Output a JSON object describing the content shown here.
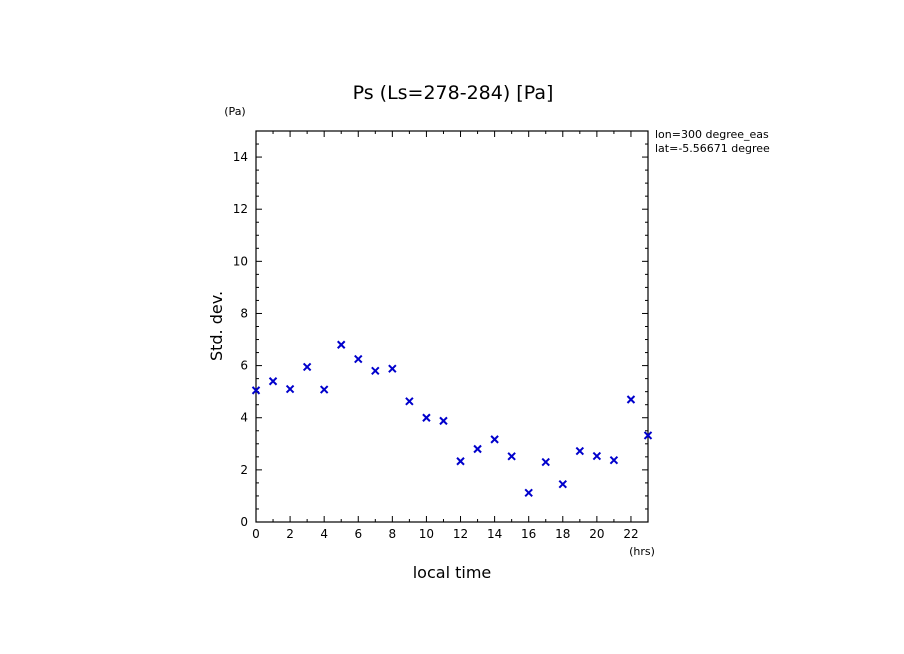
{
  "chart_data": {
    "type": "scatter",
    "title": "Ps (Ls=278-284) [Pa]",
    "xlabel": "local time",
    "ylabel": "Std. dev.",
    "x_unit": "(hrs)",
    "y_unit": "(Pa)",
    "xlim": [
      0,
      23
    ],
    "ylim": [
      0,
      15
    ],
    "xticks": [
      0,
      2,
      4,
      6,
      8,
      10,
      12,
      14,
      16,
      18,
      20,
      22
    ],
    "yticks": [
      0,
      2,
      4,
      6,
      8,
      10,
      12,
      14
    ],
    "grid": false,
    "annotations": [
      "lon=300 degree_eas",
      "lat=-5.56671 degree"
    ],
    "marker": "x",
    "marker_color": "#0000cc",
    "series": [
      {
        "name": "Std. dev.",
        "x": [
          0,
          1,
          2,
          3,
          4,
          5,
          6,
          7,
          8,
          9,
          10,
          11,
          12,
          13,
          14,
          15,
          16,
          17,
          18,
          19,
          20,
          21,
          22,
          23
        ],
        "y": [
          5.05,
          5.4,
          5.1,
          5.95,
          5.08,
          6.8,
          6.25,
          5.8,
          5.88,
          4.63,
          4.0,
          3.88,
          2.33,
          2.8,
          3.17,
          2.52,
          1.12,
          2.3,
          1.45,
          2.72,
          2.53,
          2.37,
          4.7,
          3.32
        ]
      }
    ]
  }
}
